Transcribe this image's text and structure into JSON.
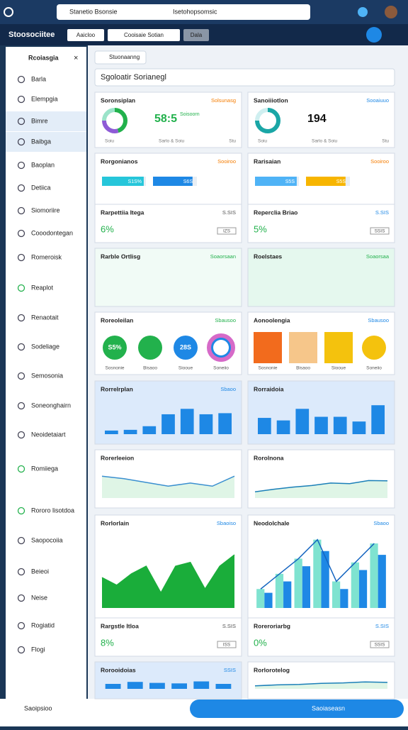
{
  "browser": {
    "tab": "Stanetio Bsonsie",
    "url": "Isetohopsomsic"
  },
  "app": {
    "title": "Stoosociitee",
    "tabs": [
      "Aaicloo",
      "Cooisaie  Sotian",
      "Dala"
    ]
  },
  "sidebar": {
    "title": "Rcoiasgia",
    "items": [
      "Barla",
      "Elempgia",
      "Bimre",
      "Baibga",
      "Baoplan",
      "Detiica",
      "Siomoriire",
      "Cooodontegan",
      "Romeroisk",
      "Reaplot",
      "Renaotait",
      "Sodeliage",
      "Semosonia",
      "Soneonghairn",
      "Neoidetaiart",
      "Romiiega",
      "Rororo lisotdoa",
      "Saopocoiia",
      "Beieoi",
      "Neise",
      "Rogiatid",
      "Flogi"
    ],
    "active": [
      2,
      3
    ]
  },
  "toolbar": {
    "chip": "Stuonaanng",
    "search": "Sgoloatir Sorianegl"
  },
  "cards": [
    {
      "kind": "gauge",
      "title": "Soronsiplan",
      "badge": "Solsunasg",
      "badge_color": "#f57c00",
      "value": "58:5",
      "sub": "Soisoorn",
      "donut": [
        45,
        30,
        25
      ],
      "colors": [
        "#22b14c",
        "#8e5bd6",
        "#9be3c9"
      ],
      "foot": [
        "Soiu",
        "Sarlo & Soiu",
        "Stu"
      ]
    },
    {
      "kind": "gauge",
      "title": "Sanoiiiotlon",
      "badge": "Sooaiuuo",
      "badge_color": "#1e88e5",
      "value": "194",
      "sub": "",
      "donut": [
        75,
        25
      ],
      "colors": [
        "#1aa6a6",
        "#cfeff0"
      ],
      "foot": [
        "Soiu",
        "Sarlo & Soiu",
        "Stu"
      ]
    },
    {
      "kind": "progress",
      "title": "Rorgonianos",
      "badge": "Sooiroo",
      "badge_color": "#f57c00",
      "bars": [
        {
          "label": "S1S%",
          "value": 95,
          "color": "#26c6da"
        },
        {
          "label": "S6S",
          "value": 90,
          "color": "#1e88e5"
        }
      ]
    },
    {
      "kind": "progress",
      "title": "Rarisaian",
      "badge": "Sooiroo",
      "badge_color": "#f57c00",
      "bars": [
        {
          "label": "S5S",
          "value": 95,
          "color": "#4fb3f6"
        },
        {
          "label": "S5S",
          "value": 90,
          "color": "#f7b500"
        }
      ]
    },
    {
      "kind": "stat",
      "title": "Rarpettiia Itega",
      "badge": "S.SIS",
      "badge_color": "#555",
      "value": "6%",
      "tag": "IZS"
    },
    {
      "kind": "stat",
      "title": "Reperclia Briao",
      "badge": "S.SIS",
      "badge_color": "#1e88e5",
      "value": "5%",
      "tag": "SSIS"
    },
    {
      "kind": "blank",
      "title": "Rarble Ortlisg",
      "badge": "Soaorsaan",
      "badge_color": "#22b14c",
      "bg": "#f1fbf6"
    },
    {
      "kind": "blank",
      "title": "Roelstaes",
      "badge": "Soaorsaa",
      "badge_color": "#22b14c",
      "bg": "#e5f8ee"
    },
    {
      "kind": "circles",
      "title": "Roreoleilan",
      "badge": "Sbausoo",
      "badge_color": "#22b14c",
      "items": [
        {
          "label": "S5%",
          "color": "#22b14c",
          "caption": "Sosnonie"
        },
        {
          "label": "",
          "color": "#22b14c",
          "caption": "Bisaoo"
        },
        {
          "label": "28S",
          "color": "#1e88e5",
          "caption": "Siooue"
        },
        {
          "label": "",
          "color": "#1e88e5",
          "caption": "Soneiio"
        }
      ]
    },
    {
      "kind": "circles",
      "title": "Aonoolengia",
      "badge": "Sbausoo",
      "badge_color": "#1e88e5",
      "items": [
        {
          "label": "",
          "color": "#f26b1d",
          "caption": "Sosnonie"
        },
        {
          "label": "",
          "color": "#f6c68a",
          "caption": "Bisaoo"
        },
        {
          "label": "",
          "color": "#f4c20d",
          "caption": "Siooue"
        },
        {
          "label": "",
          "color": "#f4c20d",
          "caption": "Soneiio"
        }
      ]
    },
    {
      "kind": "bars",
      "title": "Rorrelrplan",
      "badge": "Sbaoo",
      "badge_color": "#1e88e5",
      "bg": "#dceafb",
      "ylim": [
        0,
        100
      ],
      "values": [
        10,
        12,
        22,
        55,
        70,
        55,
        58
      ]
    },
    {
      "kind": "bars",
      "title": "Rorraidoia",
      "badge": "",
      "badge_color": "#1e88e5",
      "bg": "#dceafb",
      "ylim": [
        0,
        100
      ],
      "values": [
        45,
        38,
        70,
        48,
        48,
        35,
        80
      ]
    },
    {
      "kind": "line",
      "title": "Rorerleeion",
      "badge": "",
      "badge_color": "#1e88e5",
      "ylim": [
        0,
        100
      ],
      "values": [
        70,
        62,
        50,
        38,
        48,
        38,
        70
      ]
    },
    {
      "kind": "line",
      "title": "Rorolnona",
      "badge": "",
      "badge_color": "#1e88e5",
      "ylim": [
        0,
        100
      ],
      "values": [
        20,
        28,
        35,
        40,
        48,
        46,
        56,
        55
      ]
    },
    {
      "kind": "area",
      "title": "Rorlorlain",
      "badge": "Sbaoiso",
      "badge_color": "#1e88e5",
      "ylim": [
        0,
        100
      ],
      "values": [
        40,
        30,
        45,
        55,
        20,
        55,
        60,
        25,
        55,
        70
      ]
    },
    {
      "kind": "grouped",
      "title": "Neodolchale",
      "badge": "Sbaoo",
      "badge_color": "#1e88e5",
      "ylim": [
        0,
        100
      ],
      "series": [
        {
          "name": "",
          "color": "#7fe3d0",
          "values": [
            25,
            45,
            65,
            90,
            35,
            60,
            85
          ]
        },
        {
          "name": "",
          "color": "#1e88e5",
          "values": [
            20,
            35,
            55,
            75,
            25,
            50,
            70
          ]
        }
      ]
    },
    {
      "kind": "stat",
      "title": "Rargstle Itloa",
      "badge": "S.SIS",
      "badge_color": "#555",
      "value": "8%",
      "tag": "ISS"
    },
    {
      "kind": "stat",
      "title": "Roreroriarbg",
      "badge": "S.SIS",
      "badge_color": "#1e88e5",
      "value": "0%",
      "tag": "SSIS"
    },
    {
      "kind": "bars",
      "title": "Rorooidoias",
      "badge": "SSIS",
      "badge_color": "#1e88e5",
      "bg": "#dceafb",
      "ylim": [
        0,
        100
      ],
      "values": [
        50,
        70,
        60,
        55,
        75,
        50
      ]
    },
    {
      "kind": "line",
      "title": "Rorlorotelog",
      "badge": "",
      "badge_color": "#1e88e5",
      "ylim": [
        0,
        100
      ],
      "values": [
        30,
        40,
        45,
        55,
        60,
        70,
        65
      ]
    }
  ],
  "bottom": {
    "left": "Saoipsioo",
    "button": "Saoiaseasn"
  }
}
